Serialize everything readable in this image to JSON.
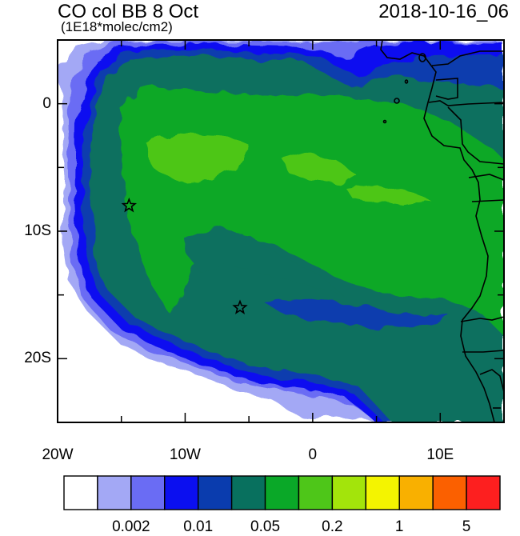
{
  "header": {
    "title": "CO col BB 8 Oct",
    "units": "(1E18*molec/cm2)",
    "timestamp": "2018-10-16_06"
  },
  "map": {
    "projection": "lat-lon",
    "lon_range": [
      -20,
      15
    ],
    "lat_range": [
      -25,
      5
    ],
    "x_ticks": [
      {
        "value": -20,
        "label": "20W"
      },
      {
        "value": -10,
        "label": "10W"
      },
      {
        "value": 0,
        "label": "0"
      },
      {
        "value": 10,
        "label": "10E"
      }
    ],
    "y_ticks": [
      {
        "value": 0,
        "label": "0"
      },
      {
        "value": -10,
        "label": "10S"
      },
      {
        "value": -20,
        "label": "20S"
      }
    ],
    "markers": [
      {
        "lon": -14.4,
        "lat": -8.0,
        "symbol": "star"
      },
      {
        "lon": -5.7,
        "lat": -16.0,
        "symbol": "star"
      }
    ]
  },
  "colorbar": {
    "colors": [
      "#ffffff",
      "#a3a8f5",
      "#6a6cf4",
      "#0b0ff0",
      "#0a3cae",
      "#08705e",
      "#0aa828",
      "#4ec619",
      "#a3e40b",
      "#f4f400",
      "#f9b000",
      "#fb6000",
      "#fd1f1f"
    ],
    "labels": [
      {
        "index": 2,
        "text": "0.002"
      },
      {
        "index": 4,
        "text": "0.01"
      },
      {
        "index": 6,
        "text": "0.05"
      },
      {
        "index": 8,
        "text": "0.2"
      },
      {
        "index": 10,
        "text": "1"
      },
      {
        "index": 12,
        "text": "5"
      }
    ]
  }
}
